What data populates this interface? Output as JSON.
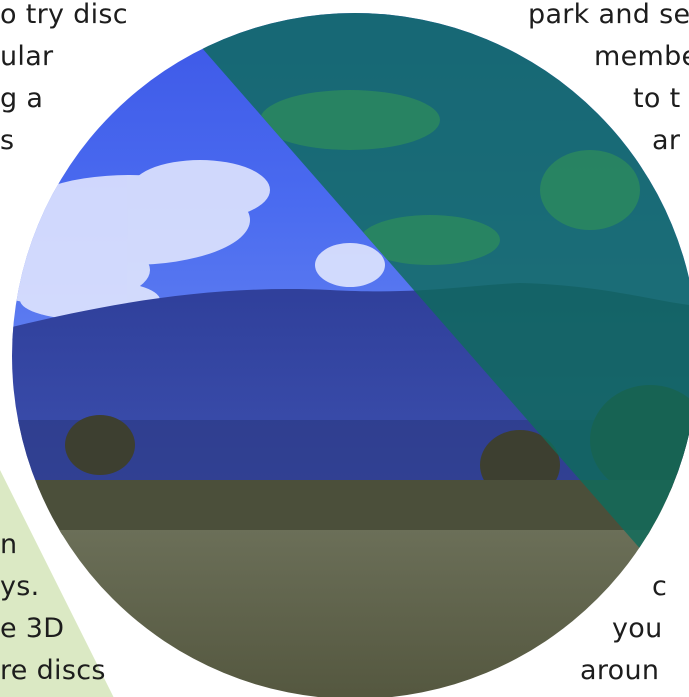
{
  "text": {
    "top_left": [
      "o try disc",
      "ular",
      "g a",
      "s"
    ],
    "top_right": [
      "park and se",
      "membe",
      "to t",
      "ar"
    ],
    "bottom_left": [
      "n",
      "ys.",
      "e 3D",
      "re discs"
    ],
    "bottom_right": [
      "c",
      "you",
      "aroun"
    ]
  },
  "colors": {
    "blue_tint": "#3a4fd8",
    "green_tint": "#0f6b5c",
    "accent_green_wedge": "#dbe9c4",
    "ring_green": "#2fae6b"
  }
}
